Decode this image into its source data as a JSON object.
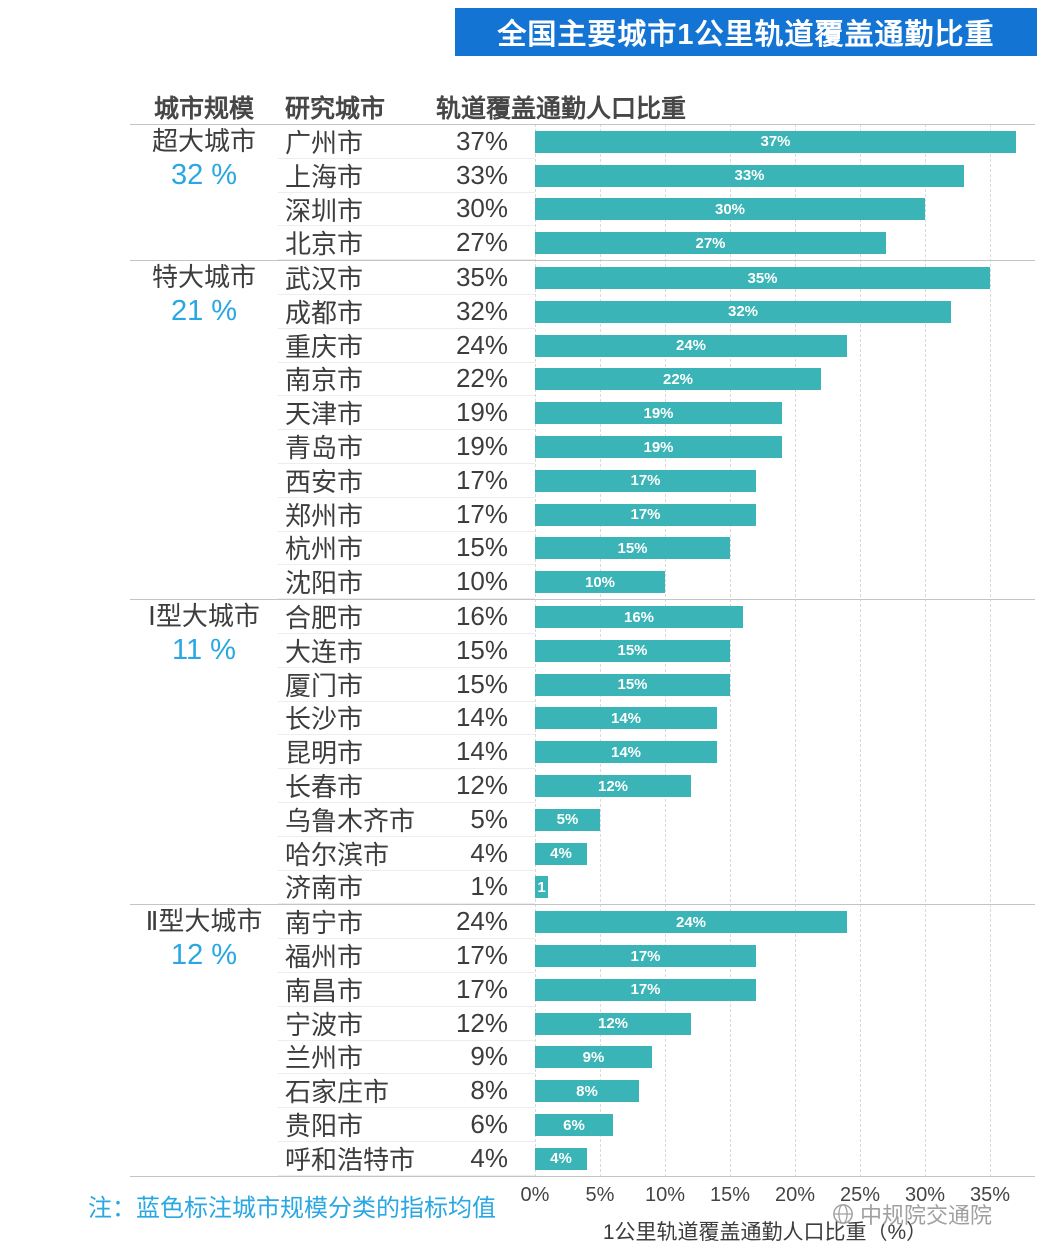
{
  "title": "全国主要城市1公里轨道覆盖通勤比重",
  "header": {
    "scale": "城市规模",
    "city": "研究城市",
    "value": "轨道覆盖通勤人口比重"
  },
  "note": "注：蓝色标注城市规模分类的指标均值",
  "watermark": "中规院交通院",
  "x_axis": {
    "label": "1公里轨道覆盖通勤人口比重（%）",
    "ticks": [
      "0%",
      "5%",
      "10%",
      "15%",
      "20%",
      "25%",
      "30%",
      "35%"
    ]
  },
  "colors": {
    "bar": "#3ab4b6",
    "title_bg": "#1474d4",
    "accent": "#29a7e2"
  },
  "chart_data": {
    "type": "bar",
    "orientation": "horizontal",
    "title": "全国主要城市1公里轨道覆盖通勤比重",
    "xlabel": "1公里轨道覆盖通勤人口比重（%）",
    "xlim_percent": [
      0,
      35
    ],
    "grid": "dashed-vertical",
    "groups": [
      {
        "scale": "超大城市",
        "average_label": "32 %",
        "average_value": 32,
        "cities": [
          {
            "name": "广州市",
            "value": 37,
            "label": "37%",
            "bar_label": "37%"
          },
          {
            "name": "上海市",
            "value": 33,
            "label": "33%",
            "bar_label": "33%"
          },
          {
            "name": "深圳市",
            "value": 30,
            "label": "30%",
            "bar_label": "30%"
          },
          {
            "name": "北京市",
            "value": 27,
            "label": "27%",
            "bar_label": "27%"
          }
        ]
      },
      {
        "scale": "特大城市",
        "average_label": "21 %",
        "average_value": 21,
        "cities": [
          {
            "name": "武汉市",
            "value": 35,
            "label": "35%",
            "bar_label": "35%"
          },
          {
            "name": "成都市",
            "value": 32,
            "label": "32%",
            "bar_label": "32%"
          },
          {
            "name": "重庆市",
            "value": 24,
            "label": "24%",
            "bar_label": "24%"
          },
          {
            "name": "南京市",
            "value": 22,
            "label": "22%",
            "bar_label": "22%"
          },
          {
            "name": "天津市",
            "value": 19,
            "label": "19%",
            "bar_label": "19%"
          },
          {
            "name": "青岛市",
            "value": 19,
            "label": "19%",
            "bar_label": "19%"
          },
          {
            "name": "西安市",
            "value": 17,
            "label": "17%",
            "bar_label": "17%"
          },
          {
            "name": "郑州市",
            "value": 17,
            "label": "17%",
            "bar_label": "17%"
          },
          {
            "name": "杭州市",
            "value": 15,
            "label": "15%",
            "bar_label": "15%"
          },
          {
            "name": "沈阳市",
            "value": 10,
            "label": "10%",
            "bar_label": "10%"
          }
        ]
      },
      {
        "scale": "Ⅰ型大城市",
        "average_label": "11 %",
        "average_value": 11,
        "cities": [
          {
            "name": "合肥市",
            "value": 16,
            "label": "16%",
            "bar_label": "16%"
          },
          {
            "name": "大连市",
            "value": 15,
            "label": "15%",
            "bar_label": "15%"
          },
          {
            "name": "厦门市",
            "value": 15,
            "label": "15%",
            "bar_label": "15%"
          },
          {
            "name": "长沙市",
            "value": 14,
            "label": "14%",
            "bar_label": "14%"
          },
          {
            "name": "昆明市",
            "value": 14,
            "label": "14%",
            "bar_label": "14%"
          },
          {
            "name": "长春市",
            "value": 12,
            "label": "12%",
            "bar_label": "12%"
          },
          {
            "name": "乌鲁木齐市",
            "value": 5,
            "label": "5%",
            "bar_label": "5%"
          },
          {
            "name": "哈尔滨市",
            "value": 4,
            "label": "4%",
            "bar_label": "4%"
          },
          {
            "name": "济南市",
            "value": 1,
            "label": "1%",
            "bar_label": "1"
          }
        ]
      },
      {
        "scale": "Ⅱ型大城市",
        "average_label": "12 %",
        "average_value": 12,
        "cities": [
          {
            "name": "南宁市",
            "value": 24,
            "label": "24%",
            "bar_label": "24%"
          },
          {
            "name": "福州市",
            "value": 17,
            "label": "17%",
            "bar_label": "17%"
          },
          {
            "name": "南昌市",
            "value": 17,
            "label": "17%",
            "bar_label": "17%"
          },
          {
            "name": "宁波市",
            "value": 12,
            "label": "12%",
            "bar_label": "12%"
          },
          {
            "name": "兰州市",
            "value": 9,
            "label": "9%",
            "bar_label": "9%"
          },
          {
            "name": "石家庄市",
            "value": 8,
            "label": "8%",
            "bar_label": "8%"
          },
          {
            "name": "贵阳市",
            "value": 6,
            "label": "6%",
            "bar_label": "6%"
          },
          {
            "name": "呼和浩特市",
            "value": 4,
            "label": "4%",
            "bar_label": "4%"
          }
        ]
      }
    ]
  }
}
